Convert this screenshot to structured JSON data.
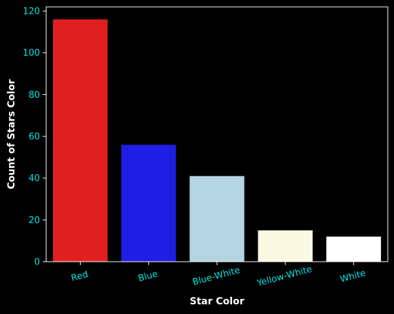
{
  "chart_data": {
    "type": "bar",
    "title": "",
    "xlabel": "Star Color",
    "ylabel": "Count of Stars Color",
    "categories": [
      "Red",
      "Blue",
      "Blue-White",
      "Yellow-White",
      "White"
    ],
    "values": [
      116,
      56,
      41,
      15,
      12
    ],
    "bar_colors": [
      "#e02020",
      "#1e1ee4",
      "#b4d4e0",
      "#fafae4",
      "#ffffff"
    ],
    "ylim": [
      0,
      122
    ],
    "yticks": [
      0,
      20,
      40,
      60,
      80,
      100,
      120
    ],
    "grid": false,
    "legend": "none"
  },
  "style": {
    "background": "#000000",
    "tick_color": "#00e5e5",
    "label_color": "#ffffff",
    "spine_color": "#ffffff"
  }
}
